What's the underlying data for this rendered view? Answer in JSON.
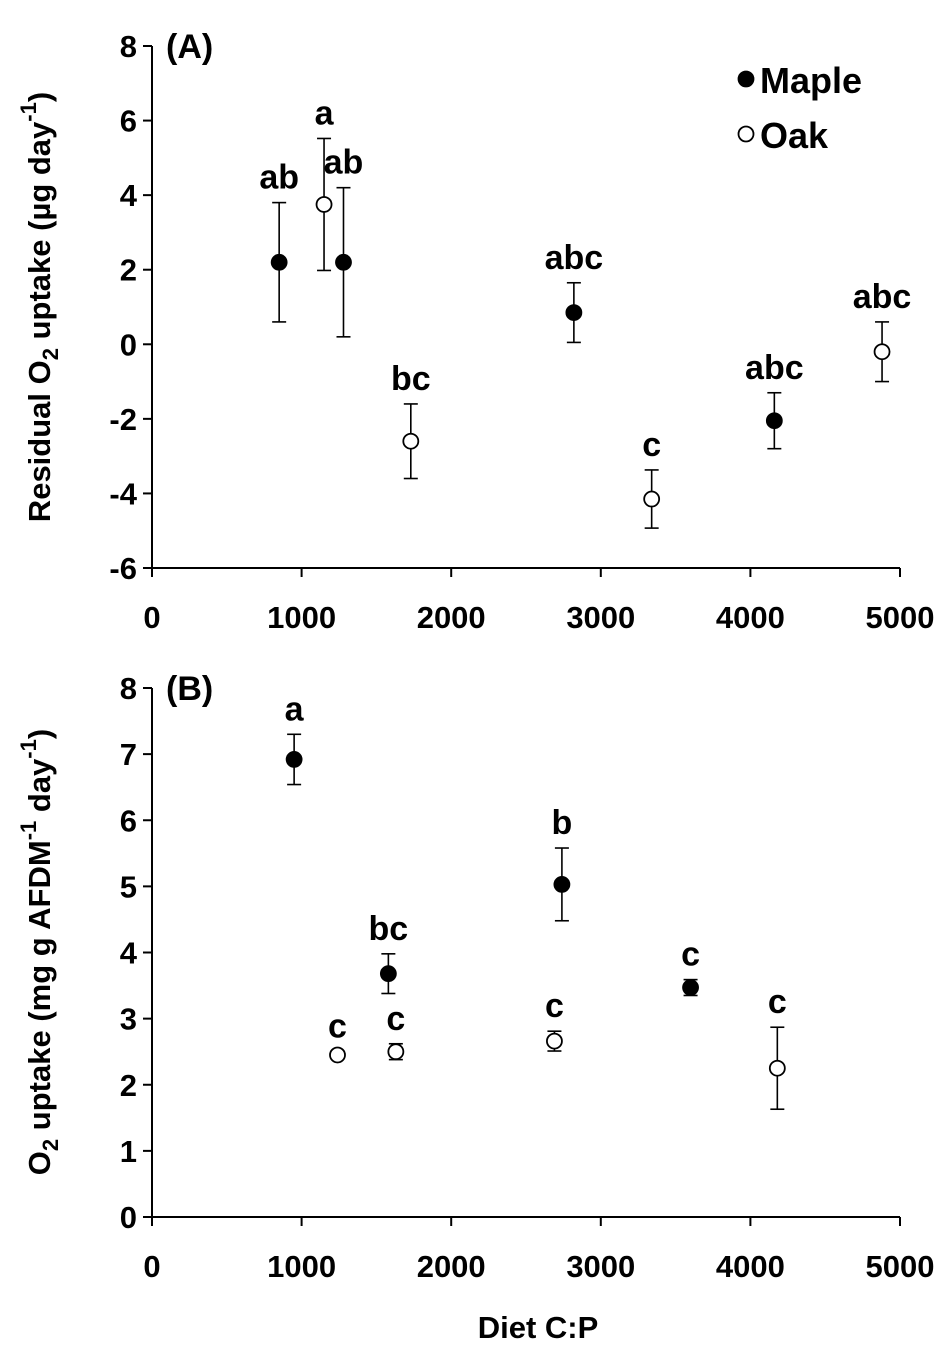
{
  "chart_data": [
    {
      "type": "scatter",
      "panel_label": "(A)",
      "xlabel": "",
      "ylabel": "Residual O2 uptake (µg day-1)",
      "ylabel_parts": [
        "Residual O",
        "2",
        " uptake (µg day",
        "-1",
        ")"
      ],
      "xlim": [
        0,
        5000
      ],
      "ylim": [
        -6,
        8
      ],
      "xticks": [
        "0",
        "1000",
        "2000",
        "3000",
        "4000",
        "5000"
      ],
      "yticks": [
        "-6",
        "-4",
        "-2",
        "0",
        "2",
        "4",
        "6",
        "8"
      ],
      "error_bars": true,
      "legend": {
        "placement": "top-right",
        "entries": [
          "Maple",
          "Oak"
        ]
      },
      "series": [
        {
          "name": "Maple",
          "marker": "filled",
          "points": [
            {
              "x": 850,
              "y": 2.2,
              "err": 1.6,
              "label": "ab"
            },
            {
              "x": 1280,
              "y": 2.2,
              "err": 2.0,
              "label": "ab"
            },
            {
              "x": 2820,
              "y": 0.85,
              "err": 0.8,
              "label": "abc"
            },
            {
              "x": 4160,
              "y": -2.05,
              "err": 0.75,
              "label": "abc"
            }
          ]
        },
        {
          "name": "Oak",
          "marker": "open",
          "points": [
            {
              "x": 1150,
              "y": 3.75,
              "err": 1.77,
              "label": "a"
            },
            {
              "x": 1730,
              "y": -2.6,
              "err": 1.0,
              "label": "bc"
            },
            {
              "x": 3340,
              "y": -4.15,
              "err": 0.78,
              "label": "c"
            },
            {
              "x": 4880,
              "y": -0.2,
              "err": 0.8,
              "label": "abc"
            }
          ]
        }
      ]
    },
    {
      "type": "scatter",
      "panel_label": "(B)",
      "xlabel": "Diet C:P",
      "ylabel": "O2 uptake (mg g AFDM-1 day-1)",
      "ylabel_parts": [
        "O",
        "2",
        " uptake (mg g AFDM",
        "-1",
        " day",
        "-1",
        ")"
      ],
      "xlim": [
        0,
        5000
      ],
      "ylim": [
        0,
        8
      ],
      "xticks": [
        "0",
        "1000",
        "2000",
        "3000",
        "4000",
        "5000"
      ],
      "yticks": [
        "0",
        "1",
        "2",
        "3",
        "4",
        "5",
        "6",
        "7",
        "8"
      ],
      "error_bars": true,
      "series": [
        {
          "name": "Maple",
          "marker": "filled",
          "points": [
            {
              "x": 950,
              "y": 6.92,
              "err": 0.38,
              "label": "a"
            },
            {
              "x": 1580,
              "y": 3.68,
              "err": 0.3,
              "label": "bc"
            },
            {
              "x": 2740,
              "y": 5.03,
              "err": 0.55,
              "label": "b"
            },
            {
              "x": 3600,
              "y": 3.47,
              "err": 0.12,
              "label": "c"
            }
          ]
        },
        {
          "name": "Oak",
          "marker": "open",
          "points": [
            {
              "x": 1240,
              "y": 2.45,
              "err": 0.05,
              "label": "c"
            },
            {
              "x": 1630,
              "y": 2.5,
              "err": 0.12,
              "label": "c"
            },
            {
              "x": 2690,
              "y": 2.66,
              "err": 0.15,
              "label": "c"
            },
            {
              "x": 4180,
              "y": 2.25,
              "err": 0.62,
              "label": "c"
            }
          ]
        }
      ]
    }
  ]
}
